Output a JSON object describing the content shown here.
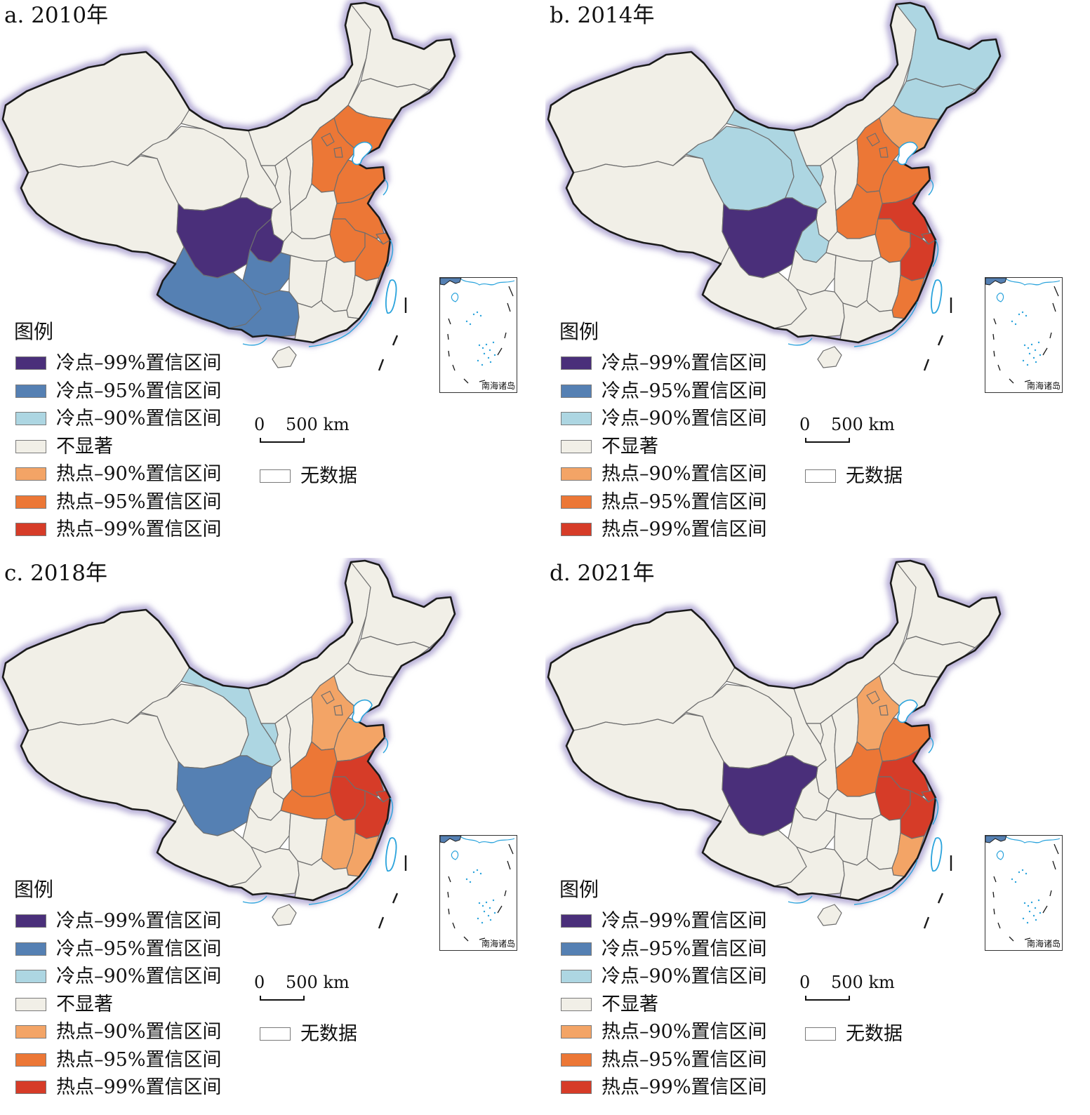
{
  "panels": [
    {
      "title": "a. 2010年",
      "regions": {
        "xinjiang": "ns",
        "tibet": "ns",
        "qinghai": "ns",
        "gansu": "ns",
        "neimenggu": "ns",
        "heilongjiang": "ns",
        "jilin": "ns",
        "liaoning": "hot95",
        "sichuan": "cold99",
        "yunnan": "cold95",
        "guizhou": "cold95",
        "guangxi": "cold95",
        "chongqing": "cold99",
        "shaanxi": "ns",
        "ningxia": "ns",
        "shanxi": "ns",
        "hebei": "hot95",
        "beijing": "hot95",
        "tianjin": "hot95",
        "shandong": "hot95",
        "henan": "ns",
        "hubei": "ns",
        "hunan": "ns",
        "jiangxi": "ns",
        "fujian": "ns",
        "guangdong": "ns",
        "hainan": "ns",
        "anhui": "hot95",
        "jiangsu": "hot95",
        "shanghai": "hot95",
        "zhejiang": "hot95"
      }
    },
    {
      "title": "b. 2014年",
      "regions": {
        "xinjiang": "ns",
        "tibet": "ns",
        "qinghai": "cold90",
        "gansu": "cold90",
        "neimenggu": "ns",
        "heilongjiang": "cold90",
        "jilin": "cold90",
        "liaoning": "hot90",
        "sichuan": "cold99",
        "yunnan": "ns",
        "guizhou": "ns",
        "guangxi": "ns",
        "chongqing": "cold90",
        "shaanxi": "ns",
        "ningxia": "cold90",
        "shanxi": "ns",
        "hebei": "hot95",
        "beijing": "hot95",
        "tianjin": "hot95",
        "shandong": "hot95",
        "henan": "hot95",
        "hubei": "ns",
        "hunan": "ns",
        "jiangxi": "ns",
        "fujian": "hot95",
        "guangdong": "ns",
        "hainan": "ns",
        "anhui": "hot95",
        "jiangsu": "hot99",
        "shanghai": "hot99",
        "zhejiang": "hot99"
      }
    },
    {
      "title": "c. 2018年",
      "regions": {
        "xinjiang": "ns",
        "tibet": "ns",
        "qinghai": "ns",
        "gansu": "cold90",
        "neimenggu": "ns",
        "heilongjiang": "ns",
        "jilin": "ns",
        "liaoning": "ns",
        "sichuan": "cold95",
        "yunnan": "ns",
        "guizhou": "ns",
        "guangxi": "ns",
        "chongqing": "ns",
        "shaanxi": "ns",
        "ningxia": "cold90",
        "shanxi": "ns",
        "hebei": "hot90",
        "beijing": "hot90",
        "tianjin": "hot90",
        "shandong": "hot90",
        "henan": "hot95",
        "hubei": "hot95",
        "hunan": "ns",
        "jiangxi": "hot90",
        "fujian": "hot90",
        "guangdong": "ns",
        "hainan": "ns",
        "anhui": "hot99",
        "jiangsu": "hot99",
        "shanghai": "hot99",
        "zhejiang": "hot99"
      }
    },
    {
      "title": "d. 2021年",
      "regions": {
        "xinjiang": "ns",
        "tibet": "ns",
        "qinghai": "ns",
        "gansu": "ns",
        "neimenggu": "ns",
        "heilongjiang": "ns",
        "jilin": "ns",
        "liaoning": "ns",
        "sichuan": "cold99",
        "yunnan": "ns",
        "guizhou": "ns",
        "guangxi": "ns",
        "chongqing": "ns",
        "shaanxi": "ns",
        "ningxia": "ns",
        "shanxi": "ns",
        "hebei": "hot90",
        "beijing": "hot90",
        "tianjin": "hot90",
        "shandong": "hot95",
        "henan": "hot95",
        "hubei": "ns",
        "hunan": "ns",
        "jiangxi": "ns",
        "fujian": "hot90",
        "guangdong": "ns",
        "hainan": "ns",
        "anhui": "hot99",
        "jiangsu": "hot99",
        "shanghai": "hot99",
        "zhejiang": "hot99"
      }
    }
  ],
  "legend": {
    "title": "图例",
    "items": [
      {
        "key": "cold99",
        "label": "冷点–99%置信区间",
        "color": "#4a2f7a"
      },
      {
        "key": "cold95",
        "label": "冷点–95%置信区间",
        "color": "#5580b3"
      },
      {
        "key": "cold90",
        "label": "冷点–90%置信区间",
        "color": "#add6e2"
      },
      {
        "key": "ns",
        "label": "不显著",
        "color": "#f1efe7"
      },
      {
        "key": "hot90",
        "label": "热点–90%置信区间",
        "color": "#f3a466"
      },
      {
        "key": "hot95",
        "label": "热点–95%置信区间",
        "color": "#ec7736"
      },
      {
        "key": "hot99",
        "label": "热点–99%置信区间",
        "color": "#d63c28"
      }
    ],
    "nodata": {
      "label": "无数据",
      "color": "#ffffff"
    }
  },
  "scale": {
    "zero": "0",
    "distance": "500 km"
  },
  "inset": {
    "label": "南海诸岛"
  },
  "colors": {
    "border_glow": "#b9b1d8",
    "border_line": "#1a1a1a",
    "coast": "#2aa3dc",
    "province_line": "#6e6e6e"
  }
}
